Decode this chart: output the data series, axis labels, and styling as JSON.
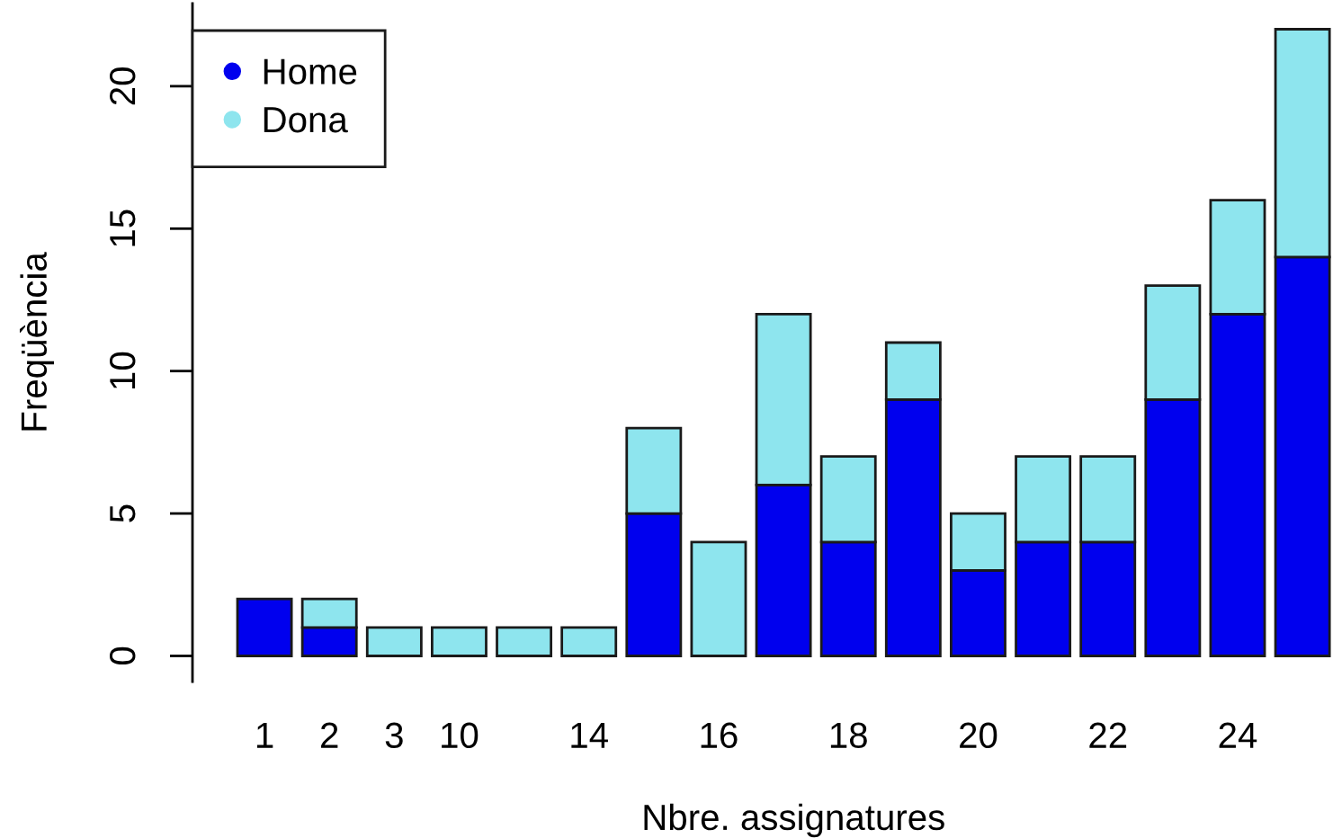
{
  "chart_data": {
    "type": "bar",
    "xlabel": "Nbre. assignatures",
    "ylabel": "Freqüència",
    "categories": [
      "1",
      "2",
      "3",
      "10",
      null,
      "14",
      null,
      "16",
      null,
      "18",
      null,
      "20",
      null,
      "22",
      null,
      "24",
      null
    ],
    "stacked": true,
    "series": [
      {
        "name": "Home",
        "color": "#0000ee",
        "values": [
          2,
          1,
          0,
          0,
          0,
          0,
          5,
          0,
          6,
          4,
          9,
          3,
          4,
          4,
          9,
          12,
          14
        ]
      },
      {
        "name": "Dona",
        "color": "#8ee5ee",
        "values": [
          0,
          1,
          1,
          1,
          1,
          1,
          3,
          4,
          6,
          3,
          2,
          2,
          3,
          3,
          4,
          4,
          8
        ]
      }
    ],
    "ylim": [
      -0.9,
      22.9
    ],
    "yticks": [
      0,
      5,
      10,
      15,
      20
    ],
    "legend": "top left",
    "marker": "circle",
    "grid": false
  }
}
